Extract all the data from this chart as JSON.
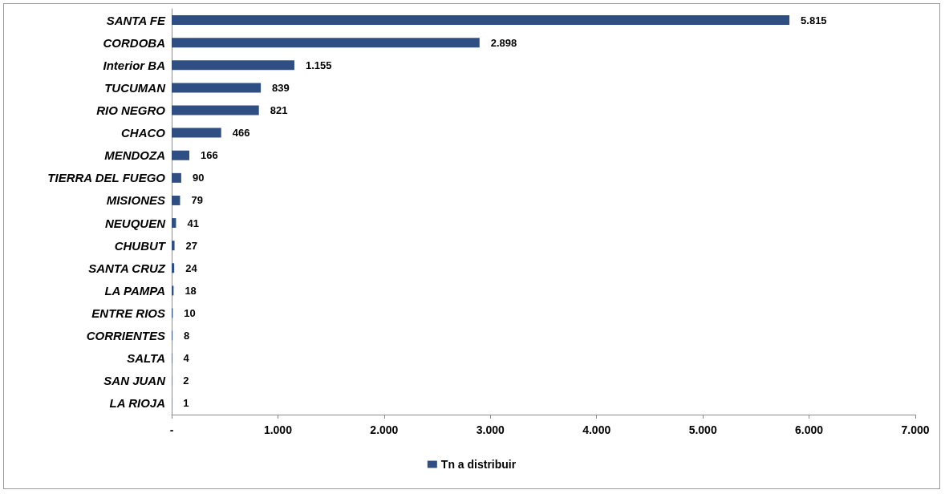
{
  "chart_data": {
    "type": "bar",
    "orientation": "horizontal",
    "categories": [
      "SANTA FE",
      "CORDOBA",
      "Interior BA",
      "TUCUMAN",
      "RIO NEGRO",
      "CHACO",
      "MENDOZA",
      "TIERRA DEL FUEGO",
      "MISIONES",
      "NEUQUEN",
      "CHUBUT",
      "SANTA CRUZ",
      "LA PAMPA",
      "ENTRE RIOS",
      "CORRIENTES",
      "SALTA",
      "SAN JUAN",
      "LA RIOJA"
    ],
    "series": [
      {
        "name": "Tn a distribuir",
        "color": "#2f4f84",
        "values": [
          5815,
          2898,
          1155,
          839,
          821,
          466,
          166,
          90,
          79,
          41,
          27,
          24,
          18,
          10,
          8,
          4,
          2,
          1
        ],
        "value_labels": [
          "5.815",
          "2.898",
          "1.155",
          "839",
          "821",
          "466",
          "166",
          "90",
          "79",
          "41",
          "27",
          "24",
          "18",
          "10",
          "8",
          "4",
          "2",
          "1"
        ]
      }
    ],
    "xlim": [
      0,
      7000
    ],
    "xticks": [
      {
        "value": 0,
        "label": "-"
      },
      {
        "value": 1000,
        "label": "1.000"
      },
      {
        "value": 2000,
        "label": "2.000"
      },
      {
        "value": 3000,
        "label": "3.000"
      },
      {
        "value": 4000,
        "label": "4.000"
      },
      {
        "value": 5000,
        "label": "5.000"
      },
      {
        "value": 6000,
        "label": "6.000"
      },
      {
        "value": 7000,
        "label": "7.000"
      }
    ],
    "grid": false,
    "legend": "bottom"
  }
}
